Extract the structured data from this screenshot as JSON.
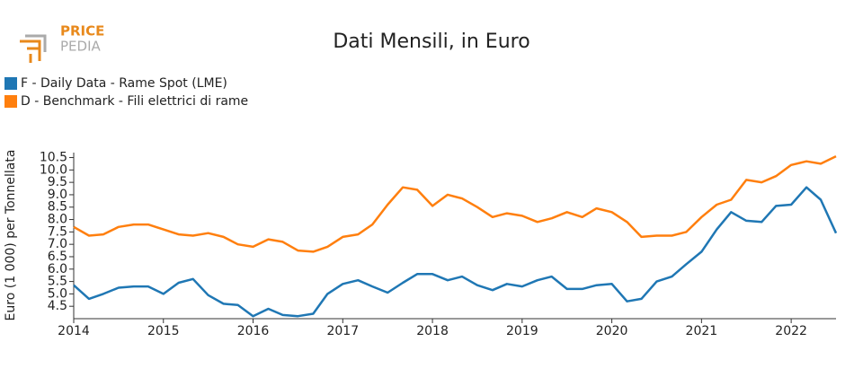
{
  "logo": {
    "line1": "PRICE",
    "line2": "PEDIA"
  },
  "chart_data": {
    "type": "line",
    "title": "Dati Mensili, in Euro",
    "y_label": "Euro (1 000) per Tonnellata",
    "x": [
      2014,
      2014.17,
      2014.33,
      2014.5,
      2014.67,
      2014.83,
      2015,
      2015.17,
      2015.33,
      2015.5,
      2015.67,
      2015.83,
      2016,
      2016.17,
      2016.33,
      2016.5,
      2016.67,
      2016.83,
      2017,
      2017.17,
      2017.33,
      2017.5,
      2017.67,
      2017.83,
      2018,
      2018.17,
      2018.33,
      2018.5,
      2018.67,
      2018.83,
      2019,
      2019.17,
      2019.33,
      2019.5,
      2019.67,
      2019.83,
      2020,
      2020.17,
      2020.33,
      2020.5,
      2020.67,
      2020.83,
      2021,
      2021.17,
      2021.33,
      2021.5,
      2021.67,
      2021.83,
      2022,
      2022.17,
      2022.33,
      2022.5
    ],
    "series": [
      {
        "name": "F - Daily Data - Rame Spot (LME)",
        "color": "#1f77b4",
        "values": [
          5.35,
          4.8,
          5.0,
          5.25,
          5.3,
          5.3,
          5.0,
          5.45,
          5.6,
          4.95,
          4.6,
          4.55,
          4.1,
          4.4,
          4.15,
          4.1,
          4.2,
          5.0,
          5.4,
          5.55,
          5.3,
          5.05,
          5.45,
          5.8,
          5.8,
          5.55,
          5.7,
          5.35,
          5.15,
          5.4,
          5.3,
          5.55,
          5.7,
          5.2,
          5.2,
          5.35,
          5.4,
          4.7,
          4.8,
          5.5,
          5.7,
          6.2,
          6.7,
          7.6,
          8.3,
          7.95,
          7.9,
          8.55,
          8.6,
          9.3,
          8.8,
          7.45
        ]
      },
      {
        "name": "D - Benchmark - Fili elettrici di rame",
        "color": "#ff7f0e",
        "values": [
          7.7,
          7.35,
          7.4,
          7.7,
          7.8,
          7.8,
          7.6,
          7.4,
          7.35,
          7.45,
          7.3,
          7.0,
          6.9,
          7.2,
          7.1,
          6.75,
          6.7,
          6.9,
          7.3,
          7.4,
          7.8,
          8.6,
          9.3,
          9.2,
          8.55,
          9.0,
          8.85,
          8.5,
          8.1,
          8.25,
          8.15,
          7.9,
          8.05,
          8.3,
          8.1,
          8.45,
          8.3,
          7.9,
          7.3,
          7.35,
          7.35,
          7.5,
          8.1,
          8.6,
          8.8,
          9.6,
          9.5,
          9.75,
          10.2,
          10.35,
          10.25,
          10.55
        ]
      }
    ],
    "xlim": [
      2014,
      2022.5
    ],
    "xticks": [
      2014,
      2015,
      2016,
      2017,
      2018,
      2019,
      2020,
      2021,
      2022
    ],
    "ylim": [
      4,
      10.7
    ],
    "yticks": [
      4.5,
      {
        "value": 5,
        "label": "5.0"
      },
      5.5,
      {
        "value": 6,
        "label": "6.0"
      },
      6.5,
      {
        "value": 7,
        "label": "7.0"
      },
      7.5,
      {
        "value": 8,
        "label": "8.0"
      },
      8.5,
      {
        "value": 9,
        "label": "9.0"
      },
      9.5,
      {
        "value": 10,
        "label": "10.0"
      },
      10.5
    ],
    "grid": false
  }
}
